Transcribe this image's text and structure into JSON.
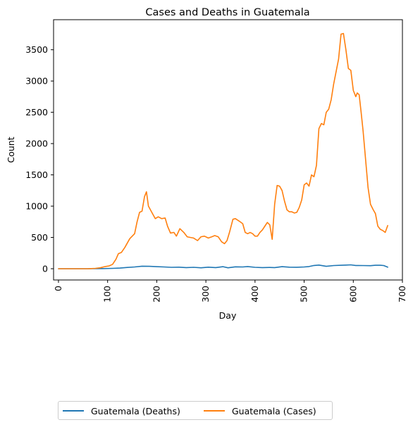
{
  "chart_data": {
    "type": "line",
    "title": "Cases and Deaths in Guatemala",
    "xlabel": "Day",
    "ylabel": "Count",
    "xlim": [
      -10,
      700
    ],
    "ylim": [
      -180,
      3980
    ],
    "xticks": [
      0,
      100,
      200,
      300,
      400,
      500,
      600,
      700
    ],
    "yticks": [
      0,
      500,
      1000,
      1500,
      2000,
      2500,
      3000,
      3500
    ],
    "grid": false,
    "legend_position": "bottom-center, below plot",
    "series": [
      {
        "name": "Guatemala (Deaths)",
        "color": "#1f77b4",
        "x": [
          0,
          60,
          90,
          110,
          125,
          140,
          155,
          170,
          185,
          200,
          215,
          230,
          245,
          260,
          275,
          290,
          305,
          320,
          335,
          345,
          360,
          375,
          385,
          400,
          415,
          430,
          440,
          455,
          470,
          485,
          500,
          510,
          520,
          530,
          545,
          560,
          575,
          585,
          595,
          605,
          620,
          635,
          645,
          655,
          662,
          670
        ],
        "y": [
          0,
          0,
          2,
          5,
          10,
          20,
          28,
          40,
          38,
          32,
          28,
          22,
          25,
          18,
          22,
          15,
          25,
          18,
          32,
          15,
          30,
          28,
          35,
          22,
          18,
          20,
          18,
          32,
          25,
          24,
          28,
          35,
          52,
          58,
          38,
          50,
          55,
          58,
          62,
          52,
          50,
          48,
          55,
          55,
          50,
          25
        ]
      },
      {
        "name": "Guatemala (Cases)",
        "color": "#ff7f0e",
        "x": [
          0,
          60,
          75,
          85,
          95,
          103,
          110,
          117,
          122,
          128,
          135,
          145,
          155,
          160,
          165,
          170,
          175,
          179,
          183,
          190,
          197,
          203,
          210,
          217,
          222,
          228,
          235,
          240,
          247,
          255,
          262,
          268,
          275,
          283,
          290,
          297,
          305,
          312,
          318,
          325,
          332,
          338,
          343,
          348,
          355,
          360,
          368,
          375,
          380,
          385,
          390,
          395,
          400,
          405,
          410,
          415,
          420,
          425,
          430,
          435,
          440,
          445,
          450,
          455,
          460,
          465,
          470,
          475,
          480,
          485,
          490,
          495,
          500,
          505,
          510,
          515,
          520,
          525,
          530,
          535,
          540,
          545,
          550,
          555,
          560,
          565,
          570,
          575,
          580,
          585,
          590,
          595,
          600,
          605,
          608,
          612,
          616,
          620,
          625,
          630,
          635,
          640,
          645,
          650,
          655,
          660,
          665,
          670
        ],
        "y": [
          0,
          0,
          5,
          15,
          35,
          45,
          70,
          150,
          240,
          260,
          340,
          480,
          560,
          750,
          900,
          920,
          1150,
          1230,
          1000,
          900,
          800,
          830,
          800,
          810,
          680,
          570,
          580,
          520,
          640,
          580,
          510,
          500,
          490,
          450,
          510,
          520,
          490,
          510,
          530,
          510,
          430,
          400,
          450,
          580,
          790,
          800,
          760,
          720,
          580,
          560,
          580,
          560,
          520,
          520,
          580,
          620,
          680,
          740,
          700,
          470,
          1030,
          1330,
          1320,
          1250,
          1080,
          940,
          910,
          910,
          890,
          900,
          980,
          1100,
          1340,
          1370,
          1320,
          1500,
          1470,
          1650,
          2240,
          2320,
          2300,
          2500,
          2550,
          2700,
          2950,
          3150,
          3350,
          3750,
          3760,
          3500,
          3200,
          3170,
          2850,
          2750,
          2810,
          2780,
          2500,
          2200,
          1750,
          1300,
          1030,
          950,
          880,
          680,
          630,
          610,
          580,
          690
        ]
      }
    ]
  }
}
